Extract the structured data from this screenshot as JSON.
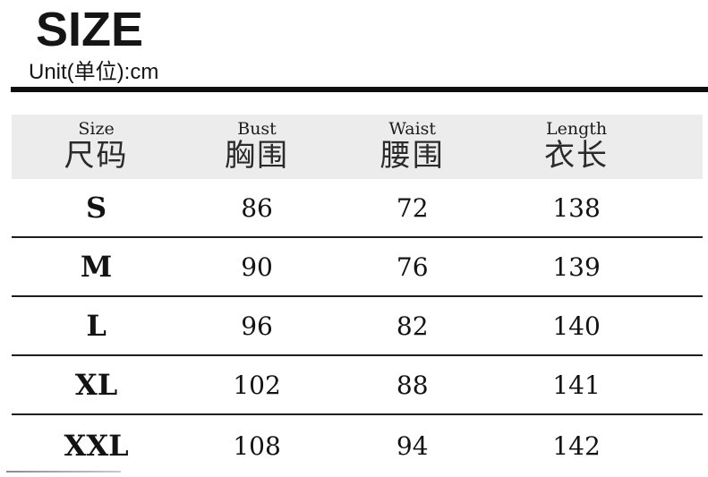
{
  "page": {
    "title": "SIZE",
    "unit_label": "Unit(单位):cm"
  },
  "chart_data": {
    "type": "table",
    "title": "SIZE",
    "unit_label": "Unit(单位):cm",
    "unit": "cm",
    "columns": [
      {
        "en": "Size",
        "zh": "尺码"
      },
      {
        "en": "Bust",
        "zh": "胸围"
      },
      {
        "en": "Waist",
        "zh": "腰围"
      },
      {
        "en": "Length",
        "zh": "衣长"
      }
    ],
    "rows": [
      [
        "S",
        "86",
        "72",
        "138"
      ],
      [
        "M",
        "90",
        "76",
        "139"
      ],
      [
        "L",
        "96",
        "82",
        "140"
      ],
      [
        "XL",
        "102",
        "88",
        "141"
      ],
      [
        "XXL",
        "108",
        "94",
        "142"
      ]
    ]
  },
  "colors": {
    "background": "#ffffff",
    "header_bg": "#ececec",
    "divider_bar": "#0f0f0f",
    "row_line": "#1e1e1e",
    "text": "#111111",
    "faint_line": "#a5a5a5"
  }
}
